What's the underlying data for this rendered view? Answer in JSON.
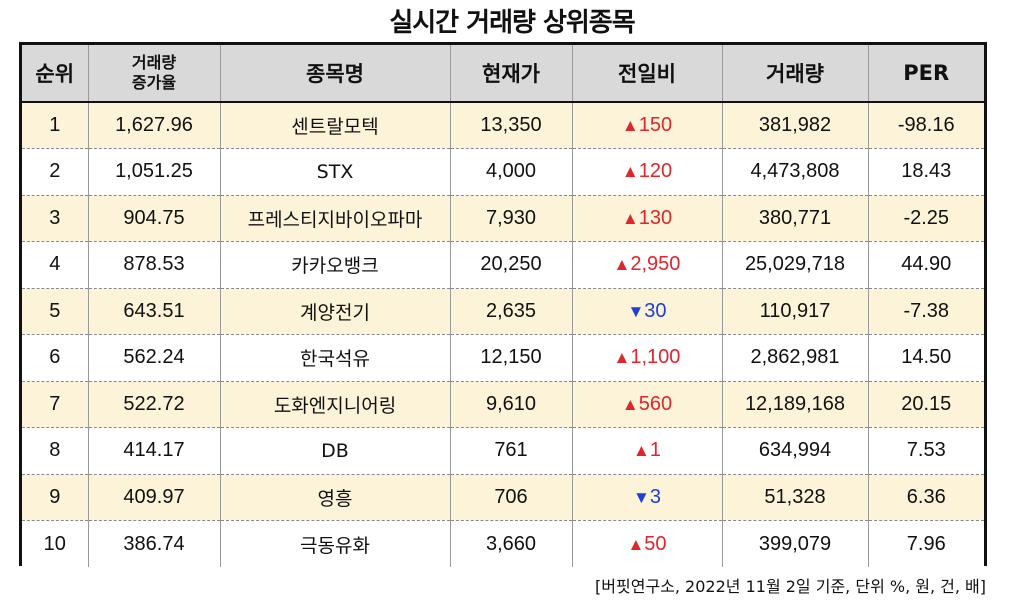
{
  "title": "실시간 거래량 상위종목",
  "headers": {
    "rank": "순위",
    "volume_increase_line1": "거래량",
    "volume_increase_line2": "증가율",
    "name": "종목명",
    "price": "현재가",
    "change": "전일비",
    "volume": "거래량",
    "per": "PER"
  },
  "rows": [
    {
      "rank": "1",
      "increase": "1,627.96",
      "name": "센트랄모텍",
      "price": "13,350",
      "arrow": "▲",
      "change": "150",
      "direction": "up",
      "volume": "381,982",
      "per": "-98.16"
    },
    {
      "rank": "2",
      "increase": "1,051.25",
      "name": "STX",
      "price": "4,000",
      "arrow": "▲",
      "change": "120",
      "direction": "up",
      "volume": "4,473,808",
      "per": "18.43"
    },
    {
      "rank": "3",
      "increase": "904.75",
      "name": "프레스티지바이오파마",
      "price": "7,930",
      "arrow": "▲",
      "change": "130",
      "direction": "up",
      "volume": "380,771",
      "per": "-2.25"
    },
    {
      "rank": "4",
      "increase": "878.53",
      "name": "카카오뱅크",
      "price": "20,250",
      "arrow": "▲",
      "change": "2,950",
      "direction": "up",
      "volume": "25,029,718",
      "per": "44.90"
    },
    {
      "rank": "5",
      "increase": "643.51",
      "name": "계양전기",
      "price": "2,635",
      "arrow": "▼",
      "change": "30",
      "direction": "down",
      "volume": "110,917",
      "per": "-7.38"
    },
    {
      "rank": "6",
      "increase": "562.24",
      "name": "한국석유",
      "price": "12,150",
      "arrow": "▲",
      "change": "1,100",
      "direction": "up",
      "volume": "2,862,981",
      "per": "14.50"
    },
    {
      "rank": "7",
      "increase": "522.72",
      "name": "도화엔지니어링",
      "price": "9,610",
      "arrow": "▲",
      "change": "560",
      "direction": "up",
      "volume": "12,189,168",
      "per": "20.15"
    },
    {
      "rank": "8",
      "increase": "414.17",
      "name": "DB",
      "price": "761",
      "arrow": "▲",
      "change": "1",
      "direction": "up",
      "volume": "634,994",
      "per": "7.53"
    },
    {
      "rank": "9",
      "increase": "409.97",
      "name": "영흥",
      "price": "706",
      "arrow": "▼",
      "change": "3",
      "direction": "down",
      "volume": "51,328",
      "per": "6.36"
    },
    {
      "rank": "10",
      "increase": "386.74",
      "name": "극동유화",
      "price": "3,660",
      "arrow": "▲",
      "change": "50",
      "direction": "up",
      "volume": "399,079",
      "per": "7.96"
    }
  ],
  "colors": {
    "up": "#e0262b",
    "down": "#1f3fd8",
    "header_bg": "#d9d9d9",
    "odd_row_bg": "#fdf3d9"
  },
  "footnote": "[버핏연구소, 2022년 11월 2일 기준, 단위 %, 원, 건, 배]"
}
